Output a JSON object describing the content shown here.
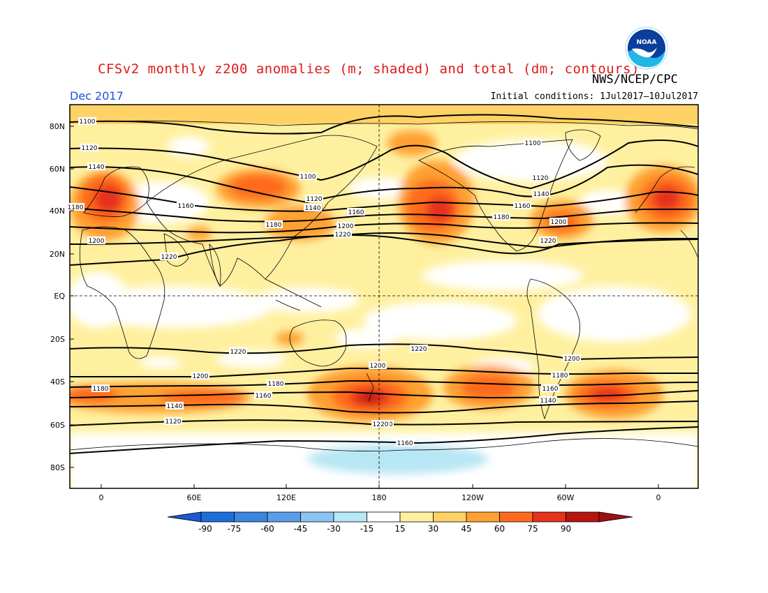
{
  "title": "CFSv2 monthly z200 anomalies (m; shaded) and total (dm; contours)",
  "agency": "NWS/NCEP/CPC",
  "month": "Dec 2017",
  "initial_conditions": "Initial conditions: 1Jul2017–10Jul2017",
  "logo_text": "NOAA",
  "axes": {
    "lat_labels": [
      "80N",
      "60N",
      "40N",
      "20N",
      "EQ",
      "20S",
      "40S",
      "60S",
      "80S"
    ],
    "lon_labels": [
      "0",
      "60E",
      "120E",
      "180",
      "120W",
      "60W",
      "0"
    ]
  },
  "colorbar": {
    "levels": [
      "-90",
      "-75",
      "-60",
      "-45",
      "-30",
      "-15",
      "15",
      "30",
      "45",
      "60",
      "75",
      "90"
    ],
    "colors": [
      "#1e6fd9",
      "#3c86e0",
      "#5b9ee8",
      "#8cc3f0",
      "#b7e6f5",
      "#ffffff",
      "#fff0a0",
      "#ffd266",
      "#ffa032",
      "#ff6b1e",
      "#e6321a",
      "#b4160f"
    ],
    "low_end_color": "#1a5bd1",
    "high_end_color": "#a01010"
  },
  "contour_labels": [
    {
      "text": "1100"
    },
    {
      "text": "1120"
    },
    {
      "text": "1140"
    },
    {
      "text": "1160"
    },
    {
      "text": "1180"
    },
    {
      "text": "1200"
    },
    {
      "text": "1220"
    },
    {
      "text": "1100"
    },
    {
      "text": "1120"
    },
    {
      "text": "1140"
    },
    {
      "text": "1160"
    },
    {
      "text": "1180"
    },
    {
      "text": "1200"
    },
    {
      "text": "1220"
    },
    {
      "text": "1100"
    },
    {
      "text": "1120"
    },
    {
      "text": "1140"
    },
    {
      "text": "1160"
    },
    {
      "text": "1180"
    },
    {
      "text": "1200"
    },
    {
      "text": "1220"
    },
    {
      "text": "1220"
    },
    {
      "text": "1220"
    },
    {
      "text": "1200"
    },
    {
      "text": "1200"
    },
    {
      "text": "1200"
    },
    {
      "text": "1180"
    },
    {
      "text": "1180"
    },
    {
      "text": "1160"
    },
    {
      "text": "1160"
    },
    {
      "text": "1140"
    },
    {
      "text": "1140"
    },
    {
      "text": "1120"
    },
    {
      "text": "1120"
    },
    {
      "text": "1180"
    },
    {
      "text": "1160"
    },
    {
      "text": "1220"
    },
    {
      "text": "1200"
    },
    {
      "text": "1180"
    }
  ]
}
